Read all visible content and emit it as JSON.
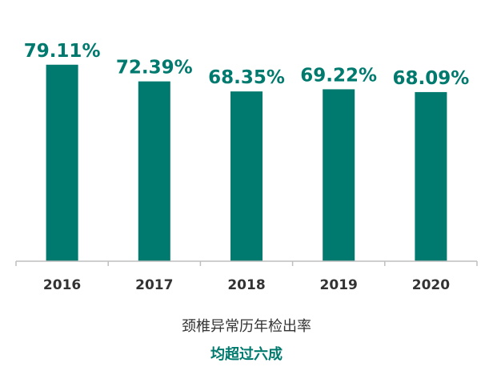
{
  "chart_data": {
    "type": "bar",
    "categories": [
      "2016",
      "2017",
      "2018",
      "2019",
      "2020"
    ],
    "values": [
      79.11,
      72.39,
      68.35,
      69.22,
      68.09
    ],
    "value_labels": [
      "79.11%",
      "72.39%",
      "68.35%",
      "69.22%",
      "68.09%"
    ],
    "ylim": [
      0,
      100
    ],
    "unit": "%",
    "grid": false,
    "legend": "none",
    "xlabel": "颈椎异常历年检出率"
  },
  "caption": {
    "line1": "颈椎异常历年检出率",
    "line2": "均超过六成"
  },
  "colors": {
    "bar": "#007a6e",
    "value_label": "#007a6e",
    "axis": "#bfbfbf",
    "tick_label": "#333333",
    "caption_accent": "#007a6e"
  }
}
